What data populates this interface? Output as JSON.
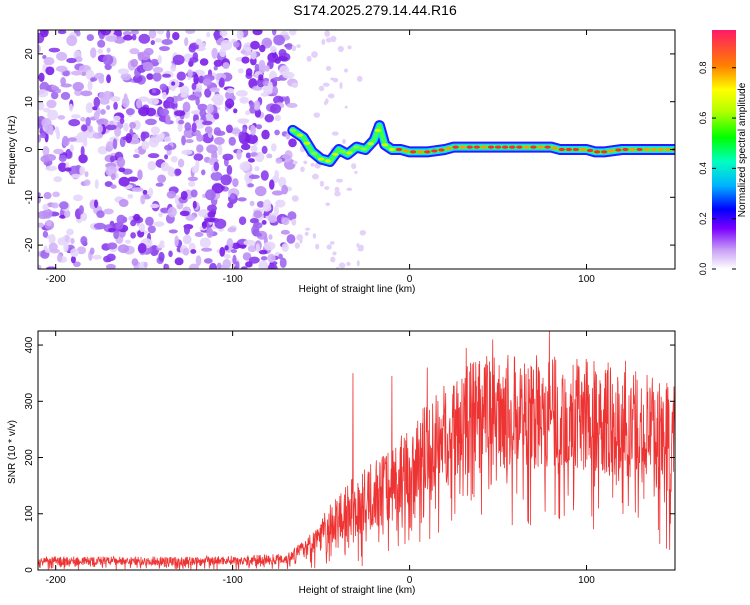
{
  "figure": {
    "title": "S174.2025.279.14.44.R16"
  },
  "chart_data": [
    {
      "type": "heatmap",
      "xlabel": "Height of straight line (km)",
      "ylabel": "Frequency (Hz)",
      "xlim": [
        -210,
        150
      ],
      "ylim": [
        -25,
        25
      ],
      "xticks": [
        -200,
        -100,
        0,
        100
      ],
      "yticks": [
        -20,
        -10,
        0,
        10,
        20
      ],
      "colorbar": {
        "label": "Normalized spectral amplitude",
        "range": [
          0,
          0.95
        ],
        "ticks": [
          0,
          0.2,
          0.4,
          0.6,
          0.8
        ],
        "tick_labels": [
          "0.0",
          "0.2",
          "0.4",
          "0.6",
          "0.8"
        ]
      },
      "noise_region_x": [
        -210,
        -66
      ],
      "signal_trace": {
        "x": [
          -66,
          -60,
          -55,
          -50,
          -45,
          -40,
          -35,
          -30,
          -25,
          -20,
          -17,
          -14,
          -10,
          -5,
          0,
          5,
          10,
          20,
          25,
          30,
          40,
          50,
          60,
          70,
          80,
          85,
          90,
          100,
          105,
          110,
          120,
          130,
          140,
          150
        ],
        "y": [
          4.0,
          2.5,
          -0.5,
          -2.0,
          -2.5,
          0.0,
          -1.0,
          0.5,
          0.0,
          2.0,
          5.0,
          1.0,
          0.0,
          0.0,
          -0.5,
          -0.5,
          -0.5,
          0.0,
          0.5,
          0.5,
          0.5,
          0.5,
          0.5,
          0.5,
          0.5,
          0.0,
          0.0,
          0.0,
          -0.5,
          -0.5,
          0.0,
          0.0,
          0.0,
          0.0
        ]
      }
    },
    {
      "type": "line",
      "xlabel": "Height of straight line (km)",
      "ylabel": "SNR (10 * v/v)",
      "xlim": [
        -210,
        150
      ],
      "ylim": [
        0,
        425
      ],
      "xticks": [
        -200,
        -100,
        0,
        100
      ],
      "yticks": [
        0,
        100,
        200,
        300,
        400
      ],
      "series": [
        {
          "color": "#ee3333",
          "x": [
            -210,
            -180,
            -150,
            -120,
            -90,
            -70,
            -60,
            -55,
            -50,
            -45,
            -40,
            -35,
            -30,
            -25,
            -20,
            -15,
            -10,
            -5,
            0,
            5,
            10,
            15,
            20,
            30,
            40,
            50,
            60,
            70,
            80,
            90,
            100,
            110,
            120,
            130,
            140,
            150
          ],
          "y": [
            20,
            20,
            20,
            20,
            22,
            25,
            45,
            60,
            80,
            100,
            115,
            130,
            140,
            150,
            165,
            175,
            190,
            205,
            225,
            240,
            255,
            270,
            285,
            310,
            330,
            330,
            330,
            330,
            330,
            325,
            325,
            320,
            310,
            300,
            290,
            285
          ],
          "spread": [
            12,
            12,
            12,
            12,
            12,
            15,
            20,
            35,
            45,
            55,
            70,
            75,
            80,
            85,
            90,
            95,
            100,
            105,
            110,
            115,
            120,
            125,
            130,
            140,
            150,
            150,
            150,
            150,
            150,
            150,
            150,
            150,
            150,
            150,
            150,
            150
          ],
          "peaks": [
            [
              -32,
              350
            ],
            [
              -10,
              345
            ],
            [
              10,
              360
            ],
            [
              32,
              395
            ],
            [
              47,
              410
            ],
            [
              79,
              425
            ],
            [
              122,
              372
            ]
          ]
        }
      ]
    }
  ]
}
